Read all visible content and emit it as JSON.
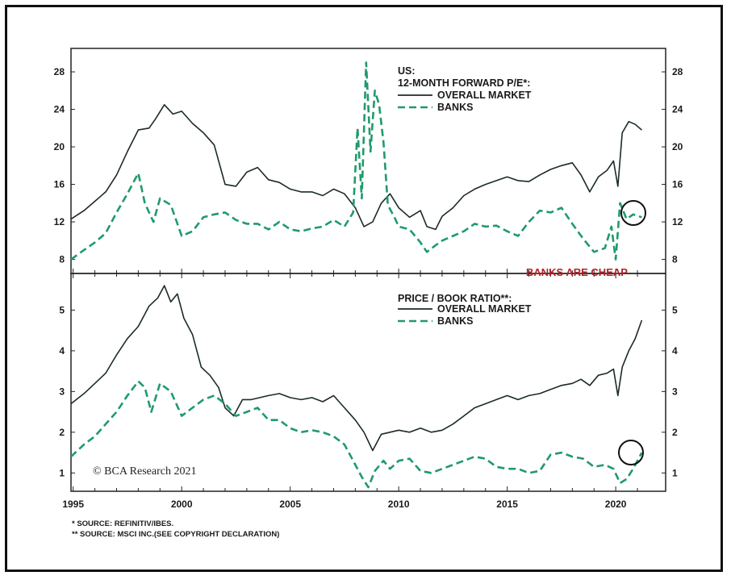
{
  "colors": {
    "market": "#1c2b28",
    "banks": "#1f9a6c",
    "callout": "#b0232a",
    "axis": "#222222"
  },
  "chart_data": [
    {
      "type": "line",
      "title": "US:",
      "subtitle": "12-MONTH FORWARD P/E*:",
      "ylim": [
        6.5,
        30.5
      ],
      "yticks": [
        8,
        12,
        16,
        20,
        24,
        28
      ],
      "xlim": [
        1994.9,
        2022.3
      ],
      "annotation": "BANKS ARE CHEAP",
      "series": [
        {
          "name": "OVERALL MARKET",
          "style": "solid",
          "x": [
            1994.9,
            1995.5,
            1996.0,
            1996.5,
            1997.0,
            1997.5,
            1998.0,
            1998.5,
            1998.8,
            1999.2,
            1999.6,
            2000.0,
            2000.5,
            2001.0,
            2001.5,
            2002.0,
            2002.5,
            2003.0,
            2003.5,
            2004.0,
            2004.5,
            2005.0,
            2005.5,
            2006.0,
            2006.5,
            2007.0,
            2007.5,
            2008.0,
            2008.4,
            2008.8,
            2009.2,
            2009.6,
            2010.0,
            2010.5,
            2011.0,
            2011.3,
            2011.7,
            2012.0,
            2012.5,
            2013.0,
            2013.5,
            2014.0,
            2014.5,
            2015.0,
            2015.5,
            2016.0,
            2016.5,
            2017.0,
            2017.5,
            2018.0,
            2018.4,
            2018.8,
            2019.2,
            2019.6,
            2019.9,
            2020.1,
            2020.3,
            2020.6,
            2020.9,
            2021.2
          ],
          "y": [
            12.3,
            13.2,
            14.2,
            15.2,
            17.0,
            19.5,
            21.8,
            22.0,
            23.0,
            24.5,
            23.5,
            23.8,
            22.5,
            21.5,
            20.2,
            16.0,
            15.8,
            17.3,
            17.8,
            16.5,
            16.2,
            15.5,
            15.2,
            15.2,
            14.8,
            15.5,
            15.0,
            13.5,
            11.5,
            12.0,
            14.0,
            15.0,
            13.5,
            12.5,
            13.2,
            11.5,
            11.2,
            12.6,
            13.5,
            14.8,
            15.5,
            16.0,
            16.4,
            16.8,
            16.4,
            16.3,
            17.0,
            17.6,
            18.0,
            18.3,
            17.0,
            15.2,
            16.8,
            17.5,
            18.5,
            15.8,
            21.5,
            22.7,
            22.4,
            21.8
          ]
        },
        {
          "name": "BANKS",
          "style": "dashed",
          "x": [
            1994.9,
            1995.5,
            1996.0,
            1996.5,
            1997.0,
            1997.5,
            1998.0,
            1998.3,
            1998.7,
            1999.0,
            1999.5,
            2000.0,
            2000.5,
            2001.0,
            2001.5,
            2002.0,
            2002.5,
            2003.0,
            2003.5,
            2004.0,
            2004.5,
            2005.0,
            2005.5,
            2006.0,
            2006.5,
            2007.0,
            2007.5,
            2007.9,
            2008.1,
            2008.3,
            2008.5,
            2008.7,
            2008.9,
            2009.1,
            2009.3,
            2009.5,
            2009.8,
            2010.0,
            2010.5,
            2011.0,
            2011.3,
            2011.7,
            2012.0,
            2012.5,
            2013.0,
            2013.5,
            2014.0,
            2014.5,
            2015.0,
            2015.5,
            2016.0,
            2016.5,
            2017.0,
            2017.5,
            2018.0,
            2018.5,
            2019.0,
            2019.5,
            2019.8,
            2020.0,
            2020.2,
            2020.5,
            2020.8,
            2021.2
          ],
          "y": [
            8.0,
            9.0,
            9.8,
            10.8,
            13.0,
            15.0,
            17.2,
            14.0,
            12.0,
            14.5,
            13.8,
            10.5,
            11.0,
            12.5,
            12.8,
            13.0,
            12.2,
            11.8,
            11.8,
            11.2,
            12.0,
            11.2,
            11.0,
            11.3,
            11.5,
            12.2,
            11.5,
            13.0,
            22.0,
            14.5,
            29.0,
            19.5,
            26.0,
            24.5,
            20.5,
            13.8,
            12.5,
            11.5,
            11.2,
            9.8,
            8.8,
            9.5,
            10.0,
            10.5,
            11.0,
            11.8,
            11.5,
            11.6,
            11.0,
            10.5,
            12.0,
            13.2,
            13.0,
            13.5,
            11.8,
            10.2,
            8.8,
            9.2,
            11.5,
            8.0,
            14.0,
            12.3,
            12.8,
            12.5
          ]
        }
      ]
    },
    {
      "type": "line",
      "title": "PRICE / BOOK RATIO**:",
      "ylim": [
        0.55,
        5.9
      ],
      "yticks": [
        1,
        2,
        3,
        4,
        5
      ],
      "xlim": [
        1994.9,
        2022.3
      ],
      "xticks": [
        1995,
        2000,
        2005,
        2010,
        2015,
        2020
      ],
      "series": [
        {
          "name": "OVERALL MARKET",
          "style": "solid",
          "x": [
            1994.9,
            1995.5,
            1996.0,
            1996.5,
            1997.0,
            1997.5,
            1998.0,
            1998.5,
            1998.9,
            1999.2,
            1999.5,
            1999.8,
            2000.1,
            2000.5,
            2000.9,
            2001.3,
            2001.7,
            2002.0,
            2002.4,
            2002.8,
            2003.2,
            2003.6,
            2004.0,
            2004.5,
            2005.0,
            2005.5,
            2006.0,
            2006.5,
            2007.0,
            2007.5,
            2008.0,
            2008.4,
            2008.8,
            2009.2,
            2009.6,
            2010.0,
            2010.5,
            2011.0,
            2011.5,
            2012.0,
            2012.5,
            2013.0,
            2013.5,
            2014.0,
            2014.5,
            2015.0,
            2015.5,
            2016.0,
            2016.5,
            2017.0,
            2017.5,
            2018.0,
            2018.4,
            2018.8,
            2019.2,
            2019.6,
            2019.9,
            2020.1,
            2020.3,
            2020.6,
            2020.9,
            2021.2
          ],
          "y": [
            2.7,
            2.95,
            3.2,
            3.45,
            3.9,
            4.3,
            4.6,
            5.1,
            5.3,
            5.6,
            5.2,
            5.4,
            4.8,
            4.4,
            3.6,
            3.4,
            3.1,
            2.6,
            2.4,
            2.8,
            2.8,
            2.85,
            2.9,
            2.95,
            2.85,
            2.8,
            2.85,
            2.75,
            2.9,
            2.6,
            2.3,
            2.0,
            1.55,
            1.95,
            2.0,
            2.05,
            2.0,
            2.1,
            2.0,
            2.05,
            2.2,
            2.4,
            2.6,
            2.7,
            2.8,
            2.9,
            2.8,
            2.9,
            2.95,
            3.05,
            3.15,
            3.2,
            3.3,
            3.15,
            3.4,
            3.45,
            3.55,
            2.9,
            3.6,
            4.0,
            4.3,
            4.75
          ]
        },
        {
          "name": "BANKS",
          "style": "dashed",
          "x": [
            1994.9,
            1995.5,
            1996.0,
            1996.5,
            1997.0,
            1997.5,
            1998.0,
            1998.3,
            1998.6,
            1999.0,
            1999.5,
            2000.0,
            2000.5,
            2001.0,
            2001.5,
            2002.0,
            2002.5,
            2003.0,
            2003.5,
            2004.0,
            2004.5,
            2005.0,
            2005.5,
            2006.0,
            2006.5,
            2007.0,
            2007.5,
            2007.9,
            2008.3,
            2008.6,
            2008.9,
            2009.3,
            2009.6,
            2010.0,
            2010.5,
            2011.0,
            2011.5,
            2012.0,
            2012.5,
            2013.0,
            2013.5,
            2014.0,
            2014.5,
            2015.0,
            2015.5,
            2016.0,
            2016.5,
            2017.0,
            2017.5,
            2018.0,
            2018.5,
            2019.0,
            2019.5,
            2019.9,
            2020.2,
            2020.5,
            2020.8,
            2021.2
          ],
          "y": [
            1.4,
            1.7,
            1.9,
            2.2,
            2.5,
            2.9,
            3.25,
            3.1,
            2.5,
            3.2,
            3.0,
            2.4,
            2.6,
            2.8,
            2.9,
            2.7,
            2.4,
            2.5,
            2.6,
            2.3,
            2.3,
            2.1,
            2.0,
            2.05,
            2.0,
            1.9,
            1.7,
            1.3,
            0.9,
            0.65,
            1.05,
            1.3,
            1.1,
            1.3,
            1.35,
            1.05,
            1.0,
            1.1,
            1.2,
            1.3,
            1.4,
            1.35,
            1.15,
            1.1,
            1.1,
            1.0,
            1.05,
            1.45,
            1.5,
            1.4,
            1.35,
            1.15,
            1.2,
            1.1,
            0.75,
            0.85,
            1.1,
            1.5
          ]
        }
      ]
    }
  ],
  "legend_lines": {
    "top": [
      "US:",
      "12-MONTH FORWARD P/E*:",
      "OVERALL MARKET",
      "BANKS"
    ],
    "bottom": [
      "PRICE / BOOK RATIO**:",
      "OVERALL MARKET",
      "BANKS"
    ]
  },
  "credit": "© BCA Research 2021",
  "footnotes": [
    "*  SOURCE: REFINITIV/IBES.",
    "** SOURCE: MSCI INC.(SEE COPYRIGHT DECLARATION)"
  ]
}
